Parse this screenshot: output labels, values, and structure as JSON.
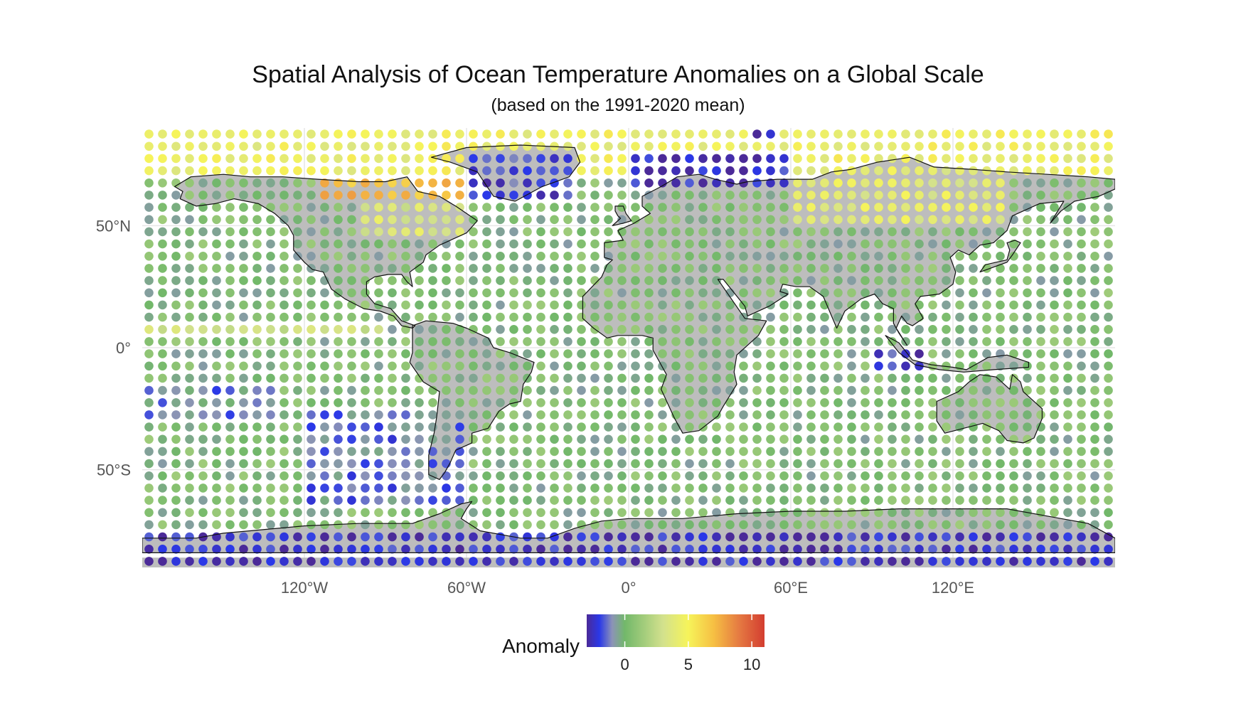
{
  "title": "Spatial Analysis of Ocean Temperature Anomalies on a Global Scale",
  "subtitle": "(based on the 1991-2020 mean)",
  "chart_data": {
    "type": "scatter",
    "projection": "equirectangular",
    "xlim": [
      -180,
      180
    ],
    "ylim": [
      -90,
      90
    ],
    "grid_spacing_deg": 5,
    "x_ticks": [
      {
        "value": -120,
        "label": "120°W"
      },
      {
        "value": -60,
        "label": "60°W"
      },
      {
        "value": 0,
        "label": "0°"
      },
      {
        "value": 60,
        "label": "60°E"
      },
      {
        "value": 120,
        "label": "120°E"
      }
    ],
    "y_ticks": [
      {
        "value": 50,
        "label": "50°N"
      },
      {
        "value": 0,
        "label": "0°"
      },
      {
        "value": -50,
        "label": "50°S"
      }
    ],
    "legend": {
      "title": "Anomaly",
      "position": "bottom",
      "range": [
        -3,
        11
      ],
      "ticks": [
        {
          "value": 0,
          "label": "0"
        },
        {
          "value": 5,
          "label": "5"
        },
        {
          "value": 10,
          "label": "10"
        }
      ],
      "colors": [
        {
          "value": -3,
          "color": "#4b2a98"
        },
        {
          "value": -2,
          "color": "#2a38e8"
        },
        {
          "value": -1,
          "color": "#8c93b7"
        },
        {
          "value": 0,
          "color": "#72b86a"
        },
        {
          "value": 3,
          "color": "#d3e18d"
        },
        {
          "value": 5,
          "color": "#f6f45a"
        },
        {
          "value": 7,
          "color": "#f6bf43"
        },
        {
          "value": 9,
          "color": "#e57a42"
        },
        {
          "value": 11,
          "color": "#d33d30"
        }
      ]
    },
    "land_color": "#bdbdbd",
    "gridline_color": "#e6e6e6",
    "regions": [
      {
        "lon": [
          -115,
          -60
        ],
        "lat": [
          62,
          84
        ],
        "value": 7
      },
      {
        "lon": [
          -180,
          180
        ],
        "lat": [
          72,
          88
        ],
        "value": 4.5
      },
      {
        "lon": [
          -60,
          -20
        ],
        "lat": [
          60,
          80
        ],
        "value": -2
      },
      {
        "lon": [
          0,
          60
        ],
        "lat": [
          65,
          80
        ],
        "value": -2.5
      },
      {
        "lon": [
          45,
          55
        ],
        "lat": [
          85,
          88
        ],
        "value": -2.5
      },
      {
        "lon": [
          60,
          140
        ],
        "lat": [
          50,
          75
        ],
        "value": 4
      },
      {
        "lon": [
          -100,
          -60
        ],
        "lat": [
          45,
          62
        ],
        "value": 3.5
      },
      {
        "lon": [
          -180,
          180
        ],
        "lat": [
          -90,
          -75
        ],
        "value": -2.5
      },
      {
        "lon": [
          -120,
          -60
        ],
        "lat": [
          -65,
          -25
        ],
        "value": -1.3
      },
      {
        "lon": [
          90,
          110
        ],
        "lat": [
          -10,
          -2
        ],
        "value": -2.2
      },
      {
        "lon": [
          -180,
          -130
        ],
        "lat": [
          -30,
          -15
        ],
        "value": -1
      },
      {
        "lon": [
          -180,
          -90
        ],
        "lat": [
          5,
          10
        ],
        "value": 3
      }
    ]
  }
}
